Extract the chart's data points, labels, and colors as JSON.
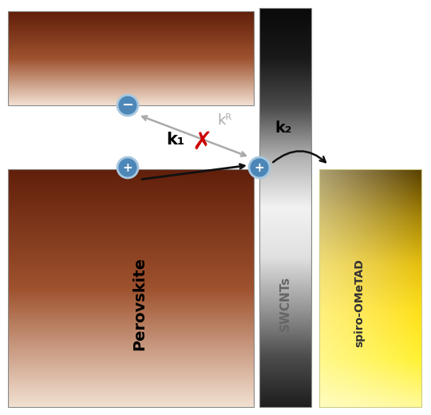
{
  "fig_width": 5.4,
  "fig_height": 5.2,
  "dpi": 100,
  "bg_color": "#ffffff",
  "perovskite_label": "Perovskite",
  "swcnt_label": "SWCNTs",
  "spiro_label": "spiro-OMeTAD",
  "k1_label": "k₁",
  "k2_label": "k₂",
  "kr_label": "kᴿ",
  "circle_color": "#4d87b8",
  "circle_edge": "#a8c8e0",
  "cross_color": "#cc0000",
  "arrow_gray": "#aaaaaa",
  "arrow_black": "#111111"
}
